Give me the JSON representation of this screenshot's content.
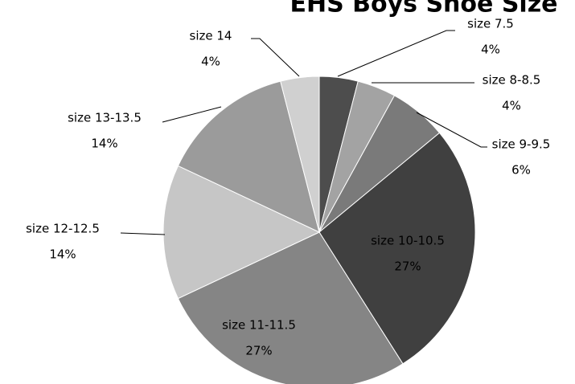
{
  "chart_data": {
    "type": "pie",
    "title": "EHS Boys Shoe Size",
    "categories": [
      "size 7.5",
      "size 8-8.5",
      "size 9-9.5",
      "size 10-10.5",
      "size 11-11.5",
      "size 12-12.5",
      "size 13-13.5",
      "size 14"
    ],
    "values": [
      4,
      4,
      6,
      27,
      27,
      14,
      14,
      4
    ],
    "value_labels": [
      "4%",
      "4%",
      "6%",
      "27%",
      "27%",
      "14%",
      "14%",
      "4%"
    ],
    "colors": [
      "#4d4d4d",
      "#a3a3a3",
      "#7a7a7a",
      "#404040",
      "#858585",
      "#c6c6c6",
      "#9b9b9b",
      "#d0d0d0"
    ]
  }
}
